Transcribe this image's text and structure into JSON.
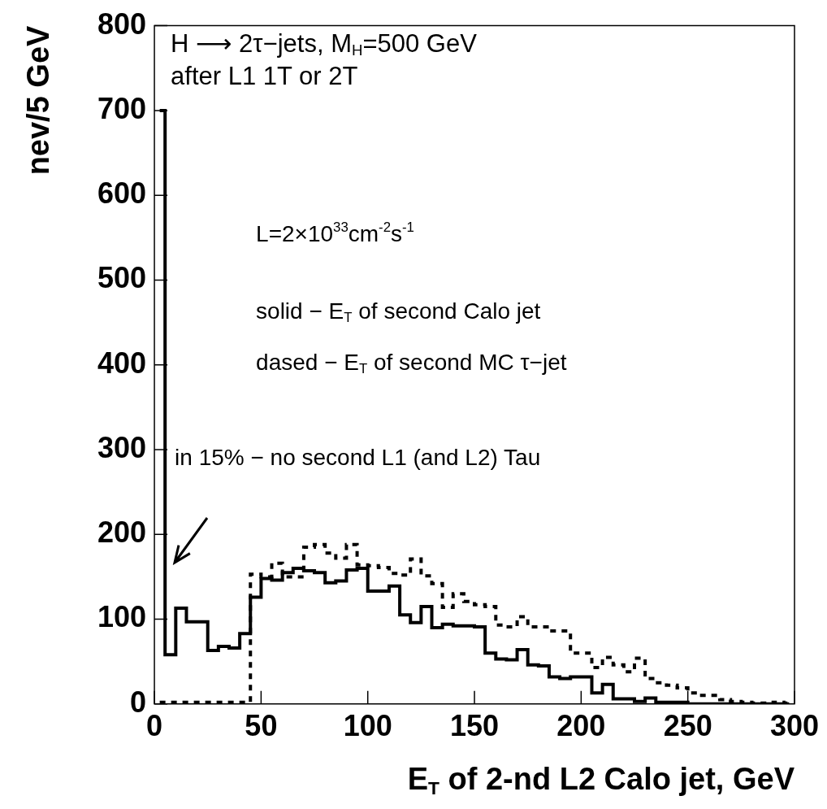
{
  "chart_data": {
    "type": "step",
    "xlabel": "E$_{T}$ of 2-nd L2 Calo jet, GeV",
    "ylabel": "nev/5 GeV",
    "x": [
      2.5,
      7.5,
      12.5,
      17.5,
      22.5,
      27.5,
      32.5,
      37.5,
      42.5,
      47.5,
      52.5,
      57.5,
      62.5,
      67.5,
      72.5,
      77.5,
      82.5,
      87.5,
      92.5,
      97.5,
      102.5,
      107.5,
      112.5,
      117.5,
      122.5,
      127.5,
      132.5,
      137.5,
      142.5,
      147.5,
      152.5,
      157.5,
      162.5,
      167.5,
      172.5,
      177.5,
      182.5,
      187.5,
      192.5,
      197.5,
      202.5,
      207.5,
      212.5,
      217.5,
      222.5,
      227.5,
      232.5,
      237.5,
      242.5,
      247.5,
      252.5,
      257.5,
      262.5,
      267.5,
      272.5,
      277.5,
      282.5,
      287.5,
      292.5,
      297.5
    ],
    "series": [
      {
        "color": "#000000",
        "line_style": "solid",
        "values": [
          700,
          58,
          113,
          97,
          97,
          63,
          68,
          66,
          83,
          126,
          148,
          146,
          155,
          160,
          157,
          155,
          143,
          145,
          158,
          160,
          133,
          133,
          139,
          105,
          96,
          115,
          90,
          94,
          92,
          92,
          91,
          60,
          53,
          52,
          64,
          46,
          45,
          32,
          30,
          32,
          32,
          13,
          23,
          6,
          6,
          3,
          7,
          2,
          2,
          2,
          0,
          0,
          0,
          0,
          0,
          0,
          0,
          0,
          0,
          0
        ]
      },
      {
        "color": "#000000",
        "line_style": "dashed",
        "values": [
          2,
          2,
          2,
          2,
          2,
          2,
          2,
          2,
          2,
          153,
          150,
          166,
          150,
          150,
          185,
          188,
          178,
          172,
          188,
          164,
          163,
          161,
          154,
          152,
          171,
          151,
          142,
          114,
          130,
          121,
          117,
          115,
          93,
          91,
          103,
          91,
          91,
          86,
          86,
          60,
          60,
          43,
          55,
          46,
          38,
          54,
          30,
          25,
          22,
          19,
          13,
          10,
          10,
          5,
          3,
          2,
          1,
          1,
          2,
          1
        ]
      }
    ],
    "xlim": [
      0,
      300
    ],
    "xticks": [
      0,
      50,
      100,
      150,
      200,
      250,
      300
    ],
    "ylim": [
      0,
      800
    ],
    "yticks": [
      0,
      100,
      200,
      300,
      400,
      500,
      600,
      700,
      800
    ],
    "grid": false,
    "legend": false,
    "annotations": [
      "H ⟶ 2τ−jets, M$_{H}$=500 GeV",
      "after L1 1T or 2T",
      "L=2×10$^{33}$cm$^{-2}$s$^{-1}$",
      "solid − E$_{T}$ of second Calo jet",
      "dased − E$_{T}$ of second MC τ−jet",
      "in 15% − no second L1 (and L2) Tau"
    ]
  }
}
